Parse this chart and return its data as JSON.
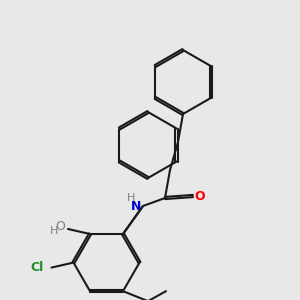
{
  "background_color": "#e8e8e8",
  "bond_color": "#1a1a1a",
  "bond_width": 1.5,
  "atom_colors": {
    "N": "#0000cd",
    "O_red": "#ff0000",
    "O_dark": "#808080",
    "Cl": "#228B22",
    "C": "#1a1a1a",
    "H": "#808080"
  },
  "font_size": 9,
  "font_size_small": 8
}
